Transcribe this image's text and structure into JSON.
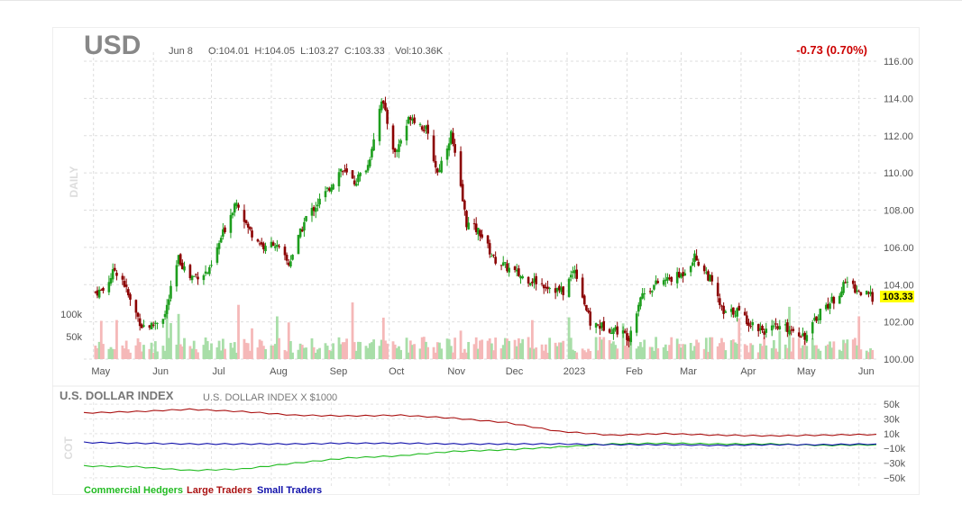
{
  "header": {
    "symbol": "USD",
    "date": "Jun 8",
    "ohlc": "O:104.01  H:104.05  L:103.27  C:103.33",
    "volume": "Vol:10.36K",
    "change": "-0.73 (0.70%)",
    "last_price": "103.33",
    "period_label": "DAILY"
  },
  "colors": {
    "up": "#1e9e1e",
    "down": "#8b0000",
    "vol_up": "#a8dea8",
    "vol_down": "#f5b8b8",
    "change": "#cc0000",
    "price_badge": "#ffff00",
    "commercial": "#22bb22",
    "large": "#aa1111",
    "small": "#1111aa"
  },
  "chart_data": [
    {
      "type": "candlestick",
      "title": "USD",
      "ylim": [
        100,
        116
      ],
      "y_ticks": [
        "116.00",
        "114.00",
        "112.00",
        "110.00",
        "108.00",
        "106.00",
        "104.00",
        "102.00",
        "100.00"
      ],
      "x_labels": [
        "May",
        "Jun",
        "Jul",
        "Aug",
        "Sep",
        "Oct",
        "Nov",
        "Dec",
        "2023",
        "Feb",
        "Mar",
        "Apr",
        "May",
        "Jun"
      ],
      "volume_ticks": [
        "100k",
        "50k"
      ],
      "close_path": [
        [
          "2022-05-02",
          103.6
        ],
        [
          "2022-05-06",
          103.7
        ],
        [
          "2022-05-12",
          104.8
        ],
        [
          "2022-05-16",
          104.3
        ],
        [
          "2022-05-20",
          103.1
        ],
        [
          "2022-05-26",
          101.8
        ],
        [
          "2022-05-31",
          101.8
        ],
        [
          "2022-06-07",
          102.4
        ],
        [
          "2022-06-14",
          105.4
        ],
        [
          "2022-06-20",
          104.4
        ],
        [
          "2022-06-30",
          104.7
        ],
        [
          "2022-07-06",
          106.5
        ],
        [
          "2022-07-14",
          108.6
        ],
        [
          "2022-07-20",
          107.0
        ],
        [
          "2022-07-29",
          105.9
        ],
        [
          "2022-08-02",
          106.3
        ],
        [
          "2022-08-10",
          105.1
        ],
        [
          "2022-08-19",
          107.6
        ],
        [
          "2022-08-29",
          108.9
        ],
        [
          "2022-09-06",
          110.2
        ],
        [
          "2022-09-13",
          109.5
        ],
        [
          "2022-09-20",
          110.4
        ],
        [
          "2022-09-27",
          114.0
        ],
        [
          "2022-10-04",
          111.0
        ],
        [
          "2022-10-12",
          113.1
        ],
        [
          "2022-10-20",
          112.3
        ],
        [
          "2022-10-26",
          110.0
        ],
        [
          "2022-11-02",
          112.1
        ],
        [
          "2022-11-10",
          107.3
        ],
        [
          "2022-11-17",
          106.8
        ],
        [
          "2022-11-24",
          105.4
        ],
        [
          "2022-12-01",
          104.9
        ],
        [
          "2022-12-09",
          104.4
        ],
        [
          "2022-12-15",
          104.2
        ],
        [
          "2022-12-30",
          103.6
        ],
        [
          "2023-01-05",
          104.9
        ],
        [
          "2023-01-13",
          101.9
        ],
        [
          "2023-01-26",
          101.6
        ],
        [
          "2023-02-02",
          101.2
        ],
        [
          "2023-02-08",
          103.4
        ],
        [
          "2023-02-17",
          104.1
        ],
        [
          "2023-03-01",
          104.5
        ],
        [
          "2023-03-08",
          105.5
        ],
        [
          "2023-03-16",
          104.3
        ],
        [
          "2023-03-23",
          102.4
        ],
        [
          "2023-03-30",
          102.6
        ],
        [
          "2023-04-06",
          101.9
        ],
        [
          "2023-04-14",
          101.5
        ],
        [
          "2023-04-21",
          101.7
        ],
        [
          "2023-04-28",
          101.6
        ],
        [
          "2023-05-05",
          101.2
        ],
        [
          "2023-05-12",
          102.6
        ],
        [
          "2023-05-19",
          103.2
        ],
        [
          "2023-05-26",
          104.2
        ],
        [
          "2023-06-01",
          103.6
        ],
        [
          "2023-06-08",
          103.33
        ]
      ]
    },
    {
      "type": "line",
      "title": "U.S. DOLLAR INDEX",
      "subtitle": "U.S. DOLLAR INDEX X $1000",
      "ylabel": "COT",
      "ylim": [
        -55000,
        55000
      ],
      "y_ticks": [
        "50k",
        "30k",
        "10k",
        "−10k",
        "−30k",
        "−50k"
      ],
      "series": [
        {
          "name": "Commercial Hedgers",
          "values": [
            -34000,
            -35000,
            -40000,
            -38000,
            -30000,
            -23000,
            -20000,
            -14000,
            -12000,
            -8000,
            -4000,
            -3000,
            -4000,
            -4000,
            -6000,
            -5000
          ]
        },
        {
          "name": "Large Traders",
          "values": [
            38000,
            40000,
            43000,
            40000,
            35000,
            34000,
            35000,
            31000,
            25000,
            13000,
            8000,
            10000,
            8000,
            7000,
            8000,
            9000
          ]
        },
        {
          "name": "Small Traders",
          "values": [
            -2000,
            -3000,
            -4000,
            -4000,
            -4000,
            -3000,
            -3000,
            -4000,
            -4000,
            -4000,
            -5000,
            -5000,
            -6000,
            -5000,
            -5000,
            -4000
          ]
        }
      ]
    }
  ],
  "legend": [
    "Commercial Hedgers",
    "Large Traders",
    "Small Traders"
  ]
}
